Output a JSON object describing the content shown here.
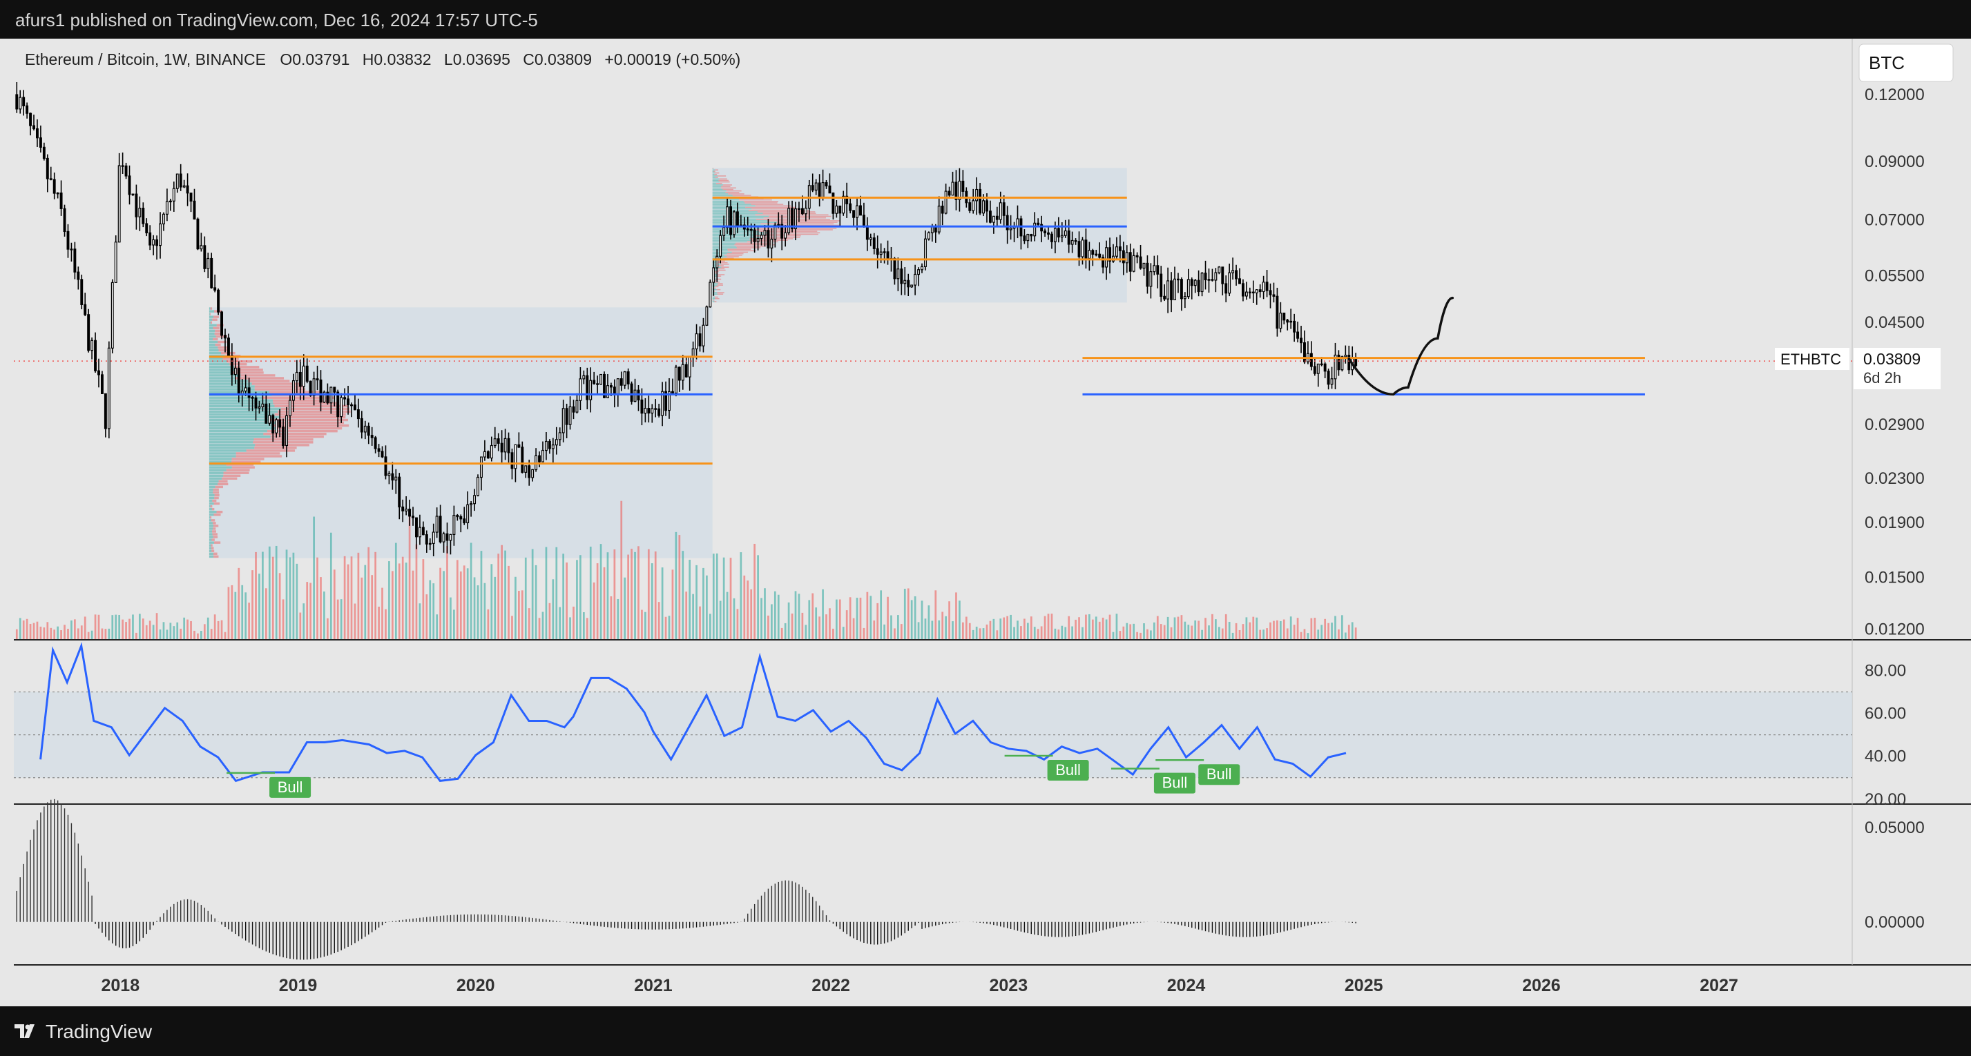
{
  "header": {
    "published": "afurs1 published on TradingView.com, Dec 16, 2024 17:57 UTC-5"
  },
  "footer": {
    "brand": "TradingView"
  },
  "legend": {
    "symbol": "Ethereum / Bitcoin, 1W, BINANCE",
    "o_label": "O",
    "o": "0.03791",
    "h_label": "H",
    "h": "0.03832",
    "l_label": "L",
    "l": "0.03695",
    "c_label": "C",
    "c": "0.03809",
    "change": "+0.00019 (+0.50%)"
  },
  "currency_button": "BTC",
  "price_tag": {
    "symbol": "ETHBTC",
    "price": "0.03809",
    "countdown": "6d 2h"
  },
  "colors": {
    "up": "#26a69a",
    "down": "#ef5350",
    "candle": "#000000",
    "level_orange": "#f7931a",
    "level_blue": "#2962ff",
    "rsi_line": "#2962ff",
    "bull_label": "#4caf50",
    "range_box": "#d3dde6"
  },
  "chart_data": [
    {
      "type": "candlestick",
      "title": "Ethereum / Bitcoin, 1W, BINANCE",
      "scale": "log",
      "ylim": [
        0.0115,
        0.15
      ],
      "y_ticks": [
        "0.12000",
        "0.09000",
        "0.07000",
        "0.05500",
        "0.04500",
        "0.02900",
        "0.02300",
        "0.01900",
        "0.01500",
        "0.01200"
      ],
      "x_ticks": [
        "2018",
        "2019",
        "2020",
        "2021",
        "2022",
        "2023",
        "2024",
        "2025",
        "2026",
        "2027"
      ],
      "approx_path": [
        {
          "t": "2017-06",
          "close": 0.12
        },
        {
          "t": "2017-09",
          "close": 0.072
        },
        {
          "t": "2017-12",
          "close": 0.03
        },
        {
          "t": "2018-01",
          "close": 0.095
        },
        {
          "t": "2018-03",
          "close": 0.06
        },
        {
          "t": "2018-05",
          "close": 0.085
        },
        {
          "t": "2018-07",
          "close": 0.055
        },
        {
          "t": "2018-09",
          "close": 0.033
        },
        {
          "t": "2018-12",
          "close": 0.028
        },
        {
          "t": "2019-01",
          "close": 0.036
        },
        {
          "t": "2019-03",
          "close": 0.033
        },
        {
          "t": "2019-06",
          "close": 0.028
        },
        {
          "t": "2019-09",
          "close": 0.018
        },
        {
          "t": "2019-12",
          "close": 0.019
        },
        {
          "t": "2020-02",
          "close": 0.027
        },
        {
          "t": "2020-05",
          "close": 0.024
        },
        {
          "t": "2020-08",
          "close": 0.034
        },
        {
          "t": "2020-11",
          "close": 0.035
        },
        {
          "t": "2021-01",
          "close": 0.03
        },
        {
          "t": "2021-04",
          "close": 0.041
        },
        {
          "t": "2021-06",
          "close": 0.07
        },
        {
          "t": "2021-09",
          "close": 0.065
        },
        {
          "t": "2021-12",
          "close": 0.08
        },
        {
          "t": "2022-03",
          "close": 0.07
        },
        {
          "t": "2022-06",
          "close": 0.051
        },
        {
          "t": "2022-09",
          "close": 0.08
        },
        {
          "t": "2022-12",
          "close": 0.073
        },
        {
          "t": "2023-03",
          "close": 0.066
        },
        {
          "t": "2023-06",
          "close": 0.062
        },
        {
          "t": "2023-09",
          "close": 0.058
        },
        {
          "t": "2023-12",
          "close": 0.052
        },
        {
          "t": "2024-03",
          "close": 0.055
        },
        {
          "t": "2024-06",
          "close": 0.052
        },
        {
          "t": "2024-08",
          "close": 0.043
        },
        {
          "t": "2024-10",
          "close": 0.036
        },
        {
          "t": "2024-12",
          "close": 0.03809
        }
      ],
      "levels": [
        {
          "color": "orange",
          "price": 0.0388,
          "from": "2018-07",
          "to": "2021-05"
        },
        {
          "color": "blue",
          "price": 0.033,
          "from": "2018-07",
          "to": "2021-05"
        },
        {
          "color": "orange",
          "price": 0.0245,
          "from": "2018-07",
          "to": "2021-05"
        },
        {
          "color": "orange",
          "price": 0.077,
          "from": "2021-05",
          "to": "2023-09"
        },
        {
          "color": "blue",
          "price": 0.068,
          "from": "2021-05",
          "to": "2023-09"
        },
        {
          "color": "orange",
          "price": 0.059,
          "from": "2021-05",
          "to": "2023-09"
        },
        {
          "color": "orange",
          "price": 0.0386,
          "from": "2023-06",
          "to": "2026-08"
        },
        {
          "color": "blue",
          "price": 0.033,
          "from": "2023-06",
          "to": "2026-08"
        }
      ],
      "projection": [
        {
          "t": "2024-12",
          "price": 0.0385
        },
        {
          "t": "2025-03",
          "price": 0.033
        },
        {
          "t": "2025-04",
          "price": 0.034
        },
        {
          "t": "2025-06",
          "price": 0.042
        },
        {
          "t": "2025-07",
          "price": 0.05
        }
      ],
      "volume_profile_ranges": [
        {
          "from": "2018-07",
          "to": "2021-05",
          "high": 0.048,
          "low": 0.0163
        },
        {
          "from": "2021-05",
          "to": "2023-09",
          "high": 0.0875,
          "low": 0.049
        }
      ]
    },
    {
      "type": "line",
      "name": "RSI",
      "ylim": [
        18,
        94
      ],
      "y_ticks": [
        "80.00",
        "60.00",
        "40.00",
        "20.00"
      ],
      "bands": [
        30,
        50,
        70
      ],
      "series": [
        {
          "values": [
            [
              2017.55,
              40
            ],
            [
              2017.62,
              88
            ],
            [
              2017.7,
              76
            ],
            [
              2017.78,
              90
            ],
            [
              2017.85,
              58
            ],
            [
              2017.95,
              52
            ],
            [
              2018.05,
              42
            ],
            [
              2018.15,
              50
            ],
            [
              2018.25,
              64
            ],
            [
              2018.35,
              55
            ],
            [
              2018.45,
              46
            ],
            [
              2018.55,
              38
            ],
            [
              2018.65,
              30
            ],
            [
              2018.8,
              31
            ],
            [
              2018.95,
              34
            ],
            [
              2019.05,
              45
            ],
            [
              2019.15,
              48
            ],
            [
              2019.25,
              46
            ],
            [
              2019.4,
              47
            ],
            [
              2019.5,
              40
            ],
            [
              2019.6,
              44
            ],
            [
              2019.7,
              38
            ],
            [
              2019.8,
              30
            ],
            [
              2019.9,
              28
            ],
            [
              2020.0,
              42
            ],
            [
              2020.1,
              45
            ],
            [
              2020.2,
              70
            ],
            [
              2020.3,
              55
            ],
            [
              2020.4,
              58
            ],
            [
              2020.5,
              52
            ],
            [
              2020.55,
              60
            ],
            [
              2020.65,
              75
            ],
            [
              2020.75,
              78
            ],
            [
              2020.85,
              70
            ],
            [
              2020.95,
              62
            ],
            [
              2021.0,
              50
            ],
            [
              2021.1,
              40
            ],
            [
              2021.2,
              52
            ],
            [
              2021.3,
              70
            ],
            [
              2021.4,
              48
            ],
            [
              2021.5,
              55
            ],
            [
              2021.6,
              85
            ],
            [
              2021.7,
              60
            ],
            [
              2021.8,
              55
            ],
            [
              2021.9,
              63
            ],
            [
              2022.0,
              50
            ],
            [
              2022.1,
              58
            ],
            [
              2022.2,
              47
            ],
            [
              2022.3,
              38
            ],
            [
              2022.4,
              32
            ],
            [
              2022.5,
              43
            ],
            [
              2022.6,
              65
            ],
            [
              2022.7,
              52
            ],
            [
              2022.8,
              55
            ],
            [
              2022.9,
              48
            ],
            [
              2023.0,
              42
            ],
            [
              2023.1,
              44
            ],
            [
              2023.2,
              37
            ],
            [
              2023.3,
              46
            ],
            [
              2023.4,
              40
            ],
            [
              2023.5,
              45
            ],
            [
              2023.6,
              36
            ],
            [
              2023.7,
              33
            ],
            [
              2023.8,
              42
            ],
            [
              2023.9,
              55
            ],
            [
              2024.0,
              38
            ],
            [
              2024.1,
              48
            ],
            [
              2024.2,
              53
            ],
            [
              2024.3,
              45
            ],
            [
              2024.4,
              52
            ],
            [
              2024.5,
              40
            ],
            [
              2024.6,
              35
            ],
            [
              2024.7,
              32
            ],
            [
              2024.8,
              38
            ],
            [
              2024.9,
              43
            ]
          ]
        }
      ],
      "annotations": [
        "Bull",
        "Bull",
        "Bull",
        "Bull"
      ]
    },
    {
      "type": "bar",
      "name": "Histogram",
      "ylim": [
        -0.022,
        0.062
      ],
      "y_ticks": [
        "0.05000",
        "0.00000"
      ]
    }
  ]
}
